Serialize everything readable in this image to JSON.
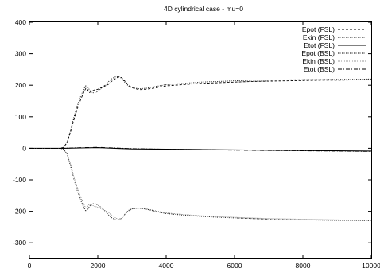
{
  "chart_data": {
    "type": "line",
    "title": "4D cylindrical case - mu=0",
    "xlabel": "",
    "ylabel": "",
    "xlim": [
      0,
      10000
    ],
    "ylim": [
      -350,
      400
    ],
    "xticks": [
      0,
      2000,
      4000,
      6000,
      8000,
      10000
    ],
    "yticks": [
      -300,
      -200,
      -100,
      0,
      100,
      200,
      300,
      400
    ],
    "grid": false,
    "legend_position": "top-right",
    "series": [
      {
        "name": "Epot (FSL)",
        "style": "dashed",
        "color": "#000000",
        "x": [
          0,
          900,
          1000,
          1100,
          1200,
          1300,
          1400,
          1500,
          1600,
          1650,
          1700,
          1750,
          1800,
          1900,
          2000,
          2100,
          2200,
          2300,
          2400,
          2500,
          2600,
          2700,
          2800,
          2900,
          3000,
          3200,
          3400,
          3600,
          3800,
          4000,
          4500,
          5000,
          5500,
          6000,
          6500,
          7000,
          7500,
          8000,
          8500,
          9000,
          9500,
          10000
        ],
        "y": [
          0,
          0,
          3,
          18,
          50,
          90,
          125,
          155,
          180,
          190,
          186,
          176,
          180,
          185,
          187,
          192,
          197,
          202,
          212,
          220,
          226,
          224,
          212,
          200,
          192,
          186,
          187,
          190,
          194,
          198,
          202,
          206,
          208,
          210,
          212,
          213,
          214,
          215,
          216,
          216,
          217,
          218
        ]
      },
      {
        "name": "Ekin (FSL)",
        "style": "dotted",
        "color": "#000000",
        "x": [
          0,
          900,
          1000,
          1100,
          1200,
          1300,
          1400,
          1500,
          1600,
          1650,
          1700,
          1750,
          1800,
          1900,
          2000,
          2100,
          2200,
          2300,
          2400,
          2500,
          2600,
          2700,
          2800,
          2900,
          3000,
          3200,
          3400,
          3600,
          3800,
          4000,
          4500,
          5000,
          5500,
          6000,
          6500,
          7000,
          7500,
          8000,
          8500,
          9000,
          9500,
          10000
        ],
        "y": [
          0,
          0,
          3,
          18,
          55,
          98,
          135,
          165,
          190,
          200,
          196,
          186,
          178,
          175,
          180,
          190,
          200,
          210,
          220,
          226,
          228,
          222,
          208,
          197,
          192,
          189,
          190,
          194,
          198,
          202,
          206,
          210,
          212,
          214,
          216,
          216,
          217,
          218,
          218,
          219,
          219,
          220
        ]
      },
      {
        "name": "Etot (FSL)",
        "style": "solid",
        "color": "#000000",
        "x": [
          0,
          1000,
          1500,
          2000,
          2500,
          3000,
          4000,
          5000,
          6000,
          7000,
          8000,
          9000,
          10000
        ],
        "y": [
          0,
          0,
          1,
          2,
          0,
          -2,
          -3,
          -4,
          -5,
          -6,
          -7,
          -8,
          -9
        ]
      },
      {
        "name": "Epot (BSL)",
        "style": "dotted",
        "color": "#000000",
        "x": [
          0,
          900,
          1000,
          1100,
          1200,
          1300,
          1400,
          1500,
          1600,
          1650,
          1700,
          1750,
          1800,
          1900,
          2000,
          2100,
          2200,
          2300,
          2400,
          2500,
          2600,
          2700,
          2800,
          2900,
          3000,
          3200,
          3400,
          3600,
          3800,
          4000,
          4500,
          5000,
          5500,
          6000,
          6500,
          7000,
          7500,
          8000,
          8500,
          9000,
          9500,
          10000
        ],
        "y": [
          0,
          0,
          -3,
          -18,
          -55,
          -98,
          -135,
          -165,
          -190,
          -200,
          -196,
          -186,
          -178,
          -175,
          -180,
          -188,
          -198,
          -210,
          -220,
          -226,
          -228,
          -222,
          -208,
          -197,
          -192,
          -190,
          -193,
          -198,
          -203,
          -207,
          -212,
          -216,
          -219,
          -221,
          -223,
          -225,
          -226,
          -227,
          -228,
          -229,
          -229,
          -230
        ]
      },
      {
        "name": "Ekin (BSL)",
        "style": "fine-dotted",
        "color": "#555555",
        "x": [
          0,
          900,
          1000,
          1100,
          1200,
          1300,
          1400,
          1500,
          1600,
          1650,
          1700,
          1750,
          1800,
          1900,
          2000,
          2100,
          2200,
          2300,
          2400,
          2500,
          2600,
          2700,
          2800,
          2900,
          3000,
          3200,
          3400,
          3600,
          3800,
          4000,
          4500,
          5000,
          5500,
          6000,
          6500,
          7000,
          7500,
          8000,
          8500,
          9000,
          9500,
          10000
        ],
        "y": [
          0,
          0,
          -3,
          -18,
          -50,
          -90,
          -125,
          -155,
          -180,
          -190,
          -186,
          -178,
          -180,
          -184,
          -187,
          -192,
          -197,
          -203,
          -212,
          -220,
          -225,
          -222,
          -210,
          -199,
          -193,
          -190,
          -192,
          -196,
          -201,
          -205,
          -210,
          -214,
          -217,
          -219,
          -221,
          -223,
          -224,
          -225,
          -226,
          -227,
          -228,
          -228
        ]
      },
      {
        "name": "Etot (BSL)",
        "style": "dash-dot",
        "color": "#000000",
        "x": [
          0,
          1000,
          1500,
          2000,
          2500,
          3000,
          4000,
          5000,
          6000,
          7000,
          8000,
          9000,
          10000
        ],
        "y": [
          0,
          0,
          2,
          3,
          1,
          -1,
          -3,
          -4,
          -6,
          -7,
          -8,
          -9,
          -10
        ]
      }
    ]
  }
}
